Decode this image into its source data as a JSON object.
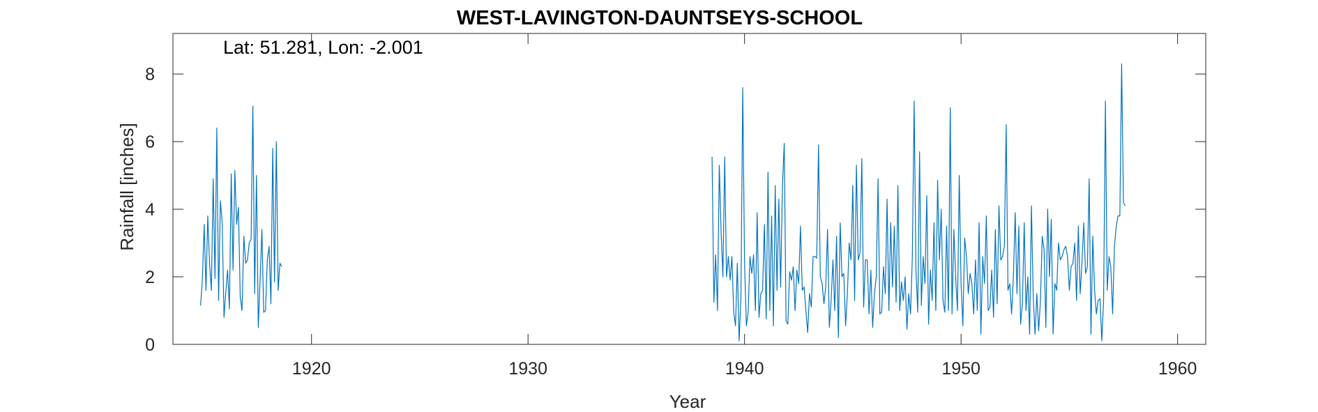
{
  "chart_data": {
    "type": "line",
    "title": "WEST-LAVINGTON-DAUNTSEYS-SCHOOL",
    "xlabel": "Year",
    "ylabel": "Rainfall [inches]",
    "annotation": "Lat: 51.281, Lon: -2.001",
    "xlim": [
      1913.6,
      1961.3
    ],
    "ylim": [
      0,
      9.2
    ],
    "xticks": [
      1920,
      1930,
      1940,
      1950,
      1960
    ],
    "yticks": [
      0,
      2,
      4,
      6,
      8
    ],
    "grid": false,
    "line_color": "#0072BD",
    "series": [
      {
        "x_start": 1914.875,
        "x_step": 0.0833333,
        "values": [
          1.15,
          1.9,
          3.55,
          1.6,
          3.8,
          2.4,
          1.6,
          4.9,
          1.95,
          6.4,
          1.3,
          4.25,
          3.6,
          0.8,
          1.55,
          2.2,
          1.05,
          5.05,
          2.2,
          5.15,
          3.55,
          4.05,
          1.4,
          1.0,
          3.2,
          2.4,
          2.5,
          3.0,
          3.1,
          7.05,
          1.5,
          5.0,
          0.5,
          1.9,
          3.4,
          0.95,
          1.0,
          2.5,
          2.9,
          1.2,
          5.8,
          1.85,
          6.0,
          1.6,
          2.4,
          2.3
        ]
      },
      {
        "x_start": 1938.5,
        "x_step": 0.0833333,
        "values": [
          5.55,
          1.25,
          2.65,
          1.0,
          5.3,
          3.35,
          2.0,
          5.55,
          2.0,
          2.6,
          1.9,
          2.6,
          0.95,
          0.55,
          2.4,
          0.1,
          1.4,
          7.6,
          2.4,
          0.55,
          0.95,
          2.6,
          2.1,
          2.65,
          1.0,
          3.9,
          0.8,
          1.5,
          1.6,
          3.55,
          0.75,
          5.1,
          1.0,
          3.8,
          0.55,
          4.7,
          1.6,
          4.3,
          1.7,
          4.7,
          5.95,
          0.7,
          0.6,
          2.15,
          1.9,
          2.3,
          1.0,
          2.2,
          1.8,
          3.5,
          1.6,
          1.7,
          1.0,
          0.35,
          1.5,
          1.1,
          2.6,
          2.6,
          2.55,
          5.9,
          2.0,
          1.8,
          1.2,
          1.7,
          3.4,
          0.5,
          1.3,
          2.5,
          1.0,
          3.2,
          0.2,
          3.6,
          2.0,
          2.1,
          0.55,
          1.5,
          3.0,
          2.5,
          4.7,
          1.3,
          5.3,
          2.5,
          2.7,
          5.5,
          1.1,
          2.5,
          2.5,
          0.9,
          2.2,
          0.5,
          1.5,
          2.0,
          4.9,
          0.9,
          0.95,
          2.3,
          1.5,
          4.3,
          1.0,
          3.6,
          1.7,
          3.5,
          1.25,
          4.7,
          1.0,
          1.85,
          1.3,
          2.0,
          0.45,
          1.5,
          0.9,
          2.6,
          7.2,
          2.2,
          0.95,
          5.7,
          1.15,
          2.6,
          1.8,
          4.4,
          0.6,
          2.2,
          1.3,
          3.6,
          1.0,
          4.85,
          2.5,
          4.0,
          1.3,
          0.95,
          3.5,
          1.0,
          7.0,
          0.9,
          3.4,
          2.0,
          1.0,
          5.0,
          1.8,
          0.55,
          3.15,
          2.6,
          1.5,
          2.1,
          1.8,
          0.9,
          2.5,
          1.0,
          3.6,
          0.3,
          2.6,
          1.8,
          3.8,
          1.0,
          1.1,
          2.2,
          0.8,
          3.4,
          1.2,
          4.1,
          2.5,
          2.6,
          2.9,
          6.5,
          1.6,
          1.8,
          0.9,
          2.0,
          3.9,
          1.5,
          3.5,
          0.6,
          1.2,
          3.6,
          1.0,
          2.0,
          0.3,
          4.1,
          1.4,
          0.3,
          1.5,
          0.4,
          1.3,
          3.2,
          2.8,
          0.5,
          4.0,
          2.0,
          3.7,
          0.3,
          1.8,
          1.6,
          3.0,
          2.5,
          2.6,
          2.8,
          2.9,
          2.6,
          1.6,
          2.3,
          2.4,
          3.0,
          1.3,
          3.5,
          1.5,
          2.4,
          3.6,
          2.1,
          2.3,
          4.9,
          0.3,
          3.2,
          1.6,
          0.9,
          1.3,
          1.35,
          0.1,
          1.3,
          7.2,
          1.6,
          2.6,
          2.3,
          0.9,
          2.9,
          3.5,
          3.8,
          3.8,
          8.3,
          4.2,
          4.1
        ]
      }
    ]
  }
}
